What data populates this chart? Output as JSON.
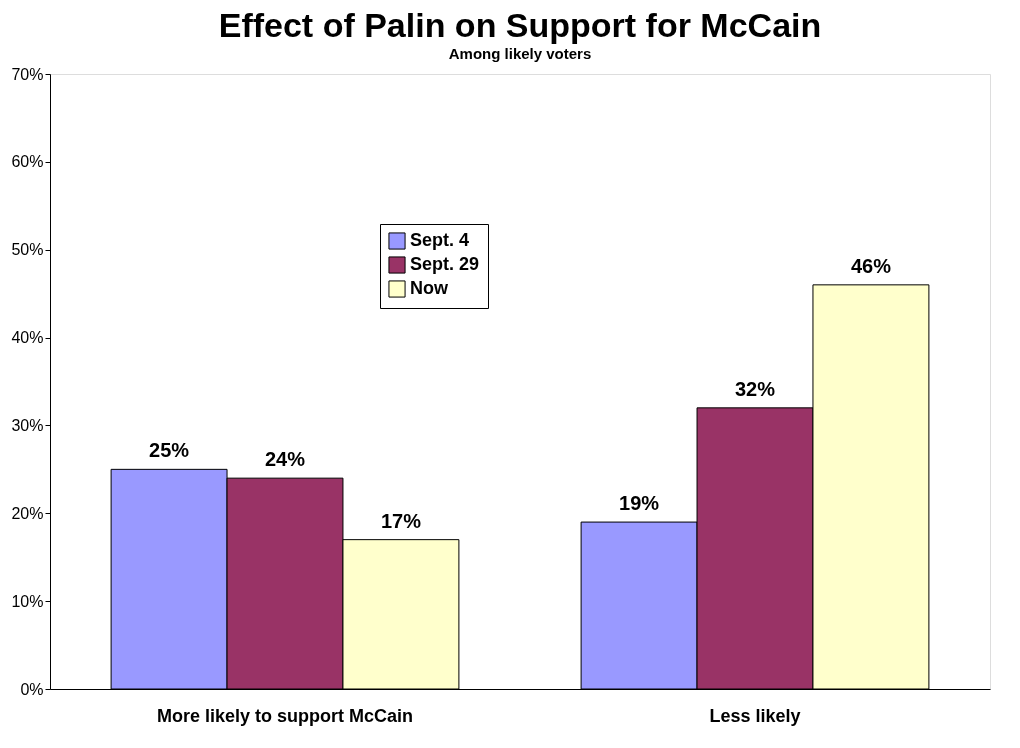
{
  "chart_data": {
    "type": "bar",
    "title": "Effect of Palin on Support for McCain",
    "subtitle": "Among likely voters",
    "categories": [
      "More likely to support McCain",
      "Less likely"
    ],
    "series": [
      {
        "name": "Sept. 4",
        "color": "#9999ff",
        "values": [
          25,
          19
        ],
        "value_labels": [
          "25%",
          "19%"
        ]
      },
      {
        "name": "Sept. 29",
        "color": "#993366",
        "values": [
          24,
          32
        ],
        "value_labels": [
          "24%",
          "32%"
        ]
      },
      {
        "name": "Now",
        "color": "#ffffcc",
        "values": [
          17,
          46
        ],
        "value_labels": [
          "17%",
          "46%"
        ]
      }
    ],
    "ylim": [
      0,
      70
    ],
    "yticks": [
      {
        "value": 0,
        "label": "0%"
      },
      {
        "value": 10,
        "label": "10%"
      },
      {
        "value": 20,
        "label": "20%"
      },
      {
        "value": 30,
        "label": "30%"
      },
      {
        "value": 40,
        "label": "40%"
      },
      {
        "value": 50,
        "label": "50%"
      },
      {
        "value": 60,
        "label": "60%"
      },
      {
        "value": 70,
        "label": "70%"
      }
    ],
    "grid": false,
    "legend": "top"
  }
}
